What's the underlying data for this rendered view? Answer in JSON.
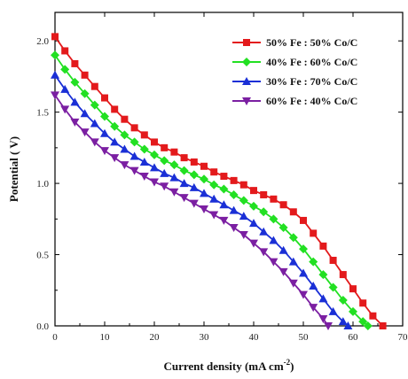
{
  "chart_data": {
    "type": "line",
    "xlabel": "Current density (mA cm",
    "xlabel_superscript": "-2",
    "xlabel_suffix": ")",
    "ylabel": "Potential ( V)",
    "xlim": [
      0,
      70
    ],
    "ylim": [
      0,
      2.2
    ],
    "x_ticks": [
      0,
      10,
      20,
      30,
      40,
      50,
      60,
      70
    ],
    "y_ticks": [
      0.0,
      0.5,
      1.0,
      1.5,
      2.0
    ],
    "y_tick_labels": [
      "0.0",
      "0.5",
      "1.0",
      "1.5",
      "2.0"
    ],
    "grid": false,
    "legend_position": "top-right",
    "series": [
      {
        "name": "50% Fe : 50% Co/C",
        "color": "#e31a1c",
        "marker": "square",
        "x": [
          0,
          2,
          4,
          6,
          8,
          10,
          12,
          14,
          16,
          18,
          20,
          22,
          24,
          26,
          28,
          30,
          32,
          34,
          36,
          38,
          40,
          42,
          44,
          46,
          48,
          50,
          52,
          54,
          56,
          58,
          60,
          62,
          64,
          66
        ],
        "y": [
          2.03,
          1.93,
          1.84,
          1.76,
          1.68,
          1.6,
          1.52,
          1.45,
          1.39,
          1.34,
          1.29,
          1.25,
          1.22,
          1.18,
          1.15,
          1.12,
          1.08,
          1.05,
          1.02,
          0.99,
          0.95,
          0.92,
          0.89,
          0.85,
          0.8,
          0.74,
          0.65,
          0.56,
          0.46,
          0.36,
          0.26,
          0.16,
          0.07,
          0.0
        ]
      },
      {
        "name": "40% Fe : 60% Co/C",
        "color": "#22e022",
        "marker": "diamond",
        "x": [
          0,
          2,
          4,
          6,
          8,
          10,
          12,
          14,
          16,
          18,
          20,
          22,
          24,
          26,
          28,
          30,
          32,
          34,
          36,
          38,
          40,
          42,
          44,
          46,
          48,
          50,
          52,
          54,
          56,
          58,
          60,
          62,
          63
        ],
        "y": [
          1.9,
          1.8,
          1.71,
          1.63,
          1.55,
          1.47,
          1.4,
          1.34,
          1.29,
          1.24,
          1.2,
          1.16,
          1.13,
          1.09,
          1.06,
          1.03,
          0.99,
          0.96,
          0.92,
          0.88,
          0.84,
          0.8,
          0.75,
          0.69,
          0.62,
          0.54,
          0.45,
          0.36,
          0.27,
          0.18,
          0.1,
          0.03,
          0.0
        ]
      },
      {
        "name": "30% Fe : 70% Co/C",
        "color": "#1a2fd6",
        "marker": "triangle-up",
        "x": [
          0,
          2,
          4,
          6,
          8,
          10,
          12,
          14,
          16,
          18,
          20,
          22,
          24,
          26,
          28,
          30,
          32,
          34,
          36,
          38,
          40,
          42,
          44,
          46,
          48,
          50,
          52,
          54,
          56,
          58,
          59
        ],
        "y": [
          1.76,
          1.66,
          1.57,
          1.49,
          1.42,
          1.35,
          1.29,
          1.24,
          1.19,
          1.15,
          1.11,
          1.07,
          1.04,
          1.0,
          0.97,
          0.93,
          0.89,
          0.85,
          0.81,
          0.77,
          0.72,
          0.66,
          0.6,
          0.53,
          0.45,
          0.37,
          0.28,
          0.19,
          0.1,
          0.03,
          0.0
        ]
      },
      {
        "name": "60% Fe : 40% Co/C",
        "color": "#7b1fa2",
        "marker": "triangle-down",
        "x": [
          0,
          2,
          4,
          6,
          8,
          10,
          12,
          14,
          16,
          18,
          20,
          22,
          24,
          26,
          28,
          30,
          32,
          34,
          36,
          38,
          40,
          42,
          44,
          46,
          48,
          50,
          52,
          54,
          55
        ],
        "y": [
          1.62,
          1.52,
          1.43,
          1.36,
          1.29,
          1.23,
          1.18,
          1.13,
          1.09,
          1.05,
          1.01,
          0.98,
          0.94,
          0.9,
          0.86,
          0.82,
          0.78,
          0.74,
          0.69,
          0.64,
          0.58,
          0.52,
          0.45,
          0.38,
          0.3,
          0.22,
          0.13,
          0.05,
          0.0
        ]
      }
    ]
  }
}
